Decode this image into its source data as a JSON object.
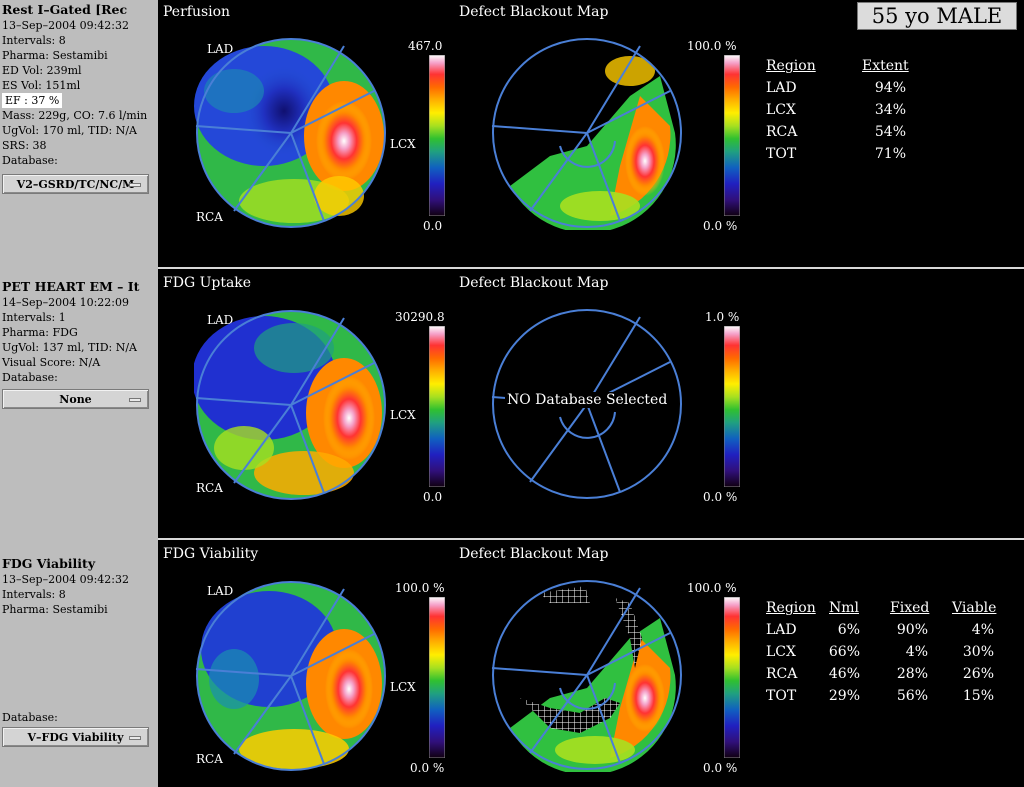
{
  "sidebar": {
    "section1": {
      "title": "Rest I–Gated [Rec",
      "date": "13–Sep–2004 09:42:32",
      "intervals": "Intervals: 8",
      "pharma": "Pharma: Sestamibi",
      "ed_vol": "ED Vol:   239ml",
      "es_vol": "ES Vol:   151ml",
      "ef": "EF   : 37 %",
      "mass": "Mass: 229g, CO: 7.6 l/min",
      "ugvol": "UgVol:   170 ml,   TID: N/A",
      "srs": "SRS: 38",
      "database_label": "Database:",
      "database_value": "V2–GSRD/TC/NC/M"
    },
    "section2": {
      "title": "PET HEART EM – It",
      "date": "14–Sep–2004 10:22:09",
      "intervals": "Intervals: 1",
      "pharma": "Pharma: FDG",
      "ugvol": "UgVol:   137 ml,   TID: N/A",
      "visual_score": "Visual Score: N/A",
      "database_label": "Database:",
      "database_value": "None"
    },
    "section3": {
      "title": "FDG Viability",
      "date": "13–Sep–2004 09:42:32",
      "intervals": "Intervals: 8",
      "pharma": "Pharma: Sestamibi",
      "database_label": "Database:",
      "database_value": "V–FDG Viability"
    }
  },
  "patient_label": "55 yo MALE",
  "rows": [
    {
      "left_title": "Perfusion",
      "right_title": "Defect Blackout Map",
      "left_scale_max": "467.0",
      "left_scale_min": "0.0",
      "right_scale_max": "100.0 %",
      "right_scale_min": "0.0 %",
      "labels": {
        "lad": "LAD",
        "lcx": "LCX",
        "rca": "RCA"
      }
    },
    {
      "left_title": "FDG Uptake",
      "right_title": "Defect Blackout Map",
      "left_scale_max": "30290.8",
      "left_scale_min": "0.0",
      "right_scale_max": "1.0 %",
      "right_scale_min": "0.0 %",
      "labels": {
        "lad": "LAD",
        "lcx": "LCX",
        "rca": "RCA"
      },
      "no_database": "NO Database Selected"
    },
    {
      "left_title": "FDG Viability",
      "right_title": "Defect Blackout Map",
      "left_scale_max": "100.0 %",
      "left_scale_min": "0.0 %",
      "right_scale_max": "100.0 %",
      "right_scale_min": "0.0 %",
      "labels": {
        "lad": "LAD",
        "lcx": "LCX",
        "rca": "RCA"
      }
    }
  ],
  "extent_table": {
    "headers": [
      "Region",
      "Extent"
    ],
    "rows": [
      [
        "LAD",
        "94%"
      ],
      [
        "LCX",
        "34%"
      ],
      [
        "RCA",
        "54%"
      ],
      [
        "TOT",
        "71%"
      ]
    ]
  },
  "viability_table": {
    "headers": [
      "Region",
      "Nml",
      "Fixed",
      "Viable"
    ],
    "rows": [
      [
        "LAD",
        "6%",
        "90%",
        "4%"
      ],
      [
        "LCX",
        "66%",
        "4%",
        "30%"
      ],
      [
        "RCA",
        "46%",
        "28%",
        "26%"
      ],
      [
        "TOT",
        "29%",
        "56%",
        "15%"
      ]
    ]
  },
  "colors": {
    "sidebar_bg": "#bdbdbd",
    "panel_bg": "#000000",
    "ring_border": "#4a7fd6",
    "colorbar": [
      "#ffffff",
      "#f5a0c8",
      "#ff3333",
      "#ff6a00",
      "#ffb000",
      "#ffee00",
      "#a8e020",
      "#30c030",
      "#20a080",
      "#1060c0",
      "#2020c0",
      "#30107a",
      "#100010"
    ]
  }
}
